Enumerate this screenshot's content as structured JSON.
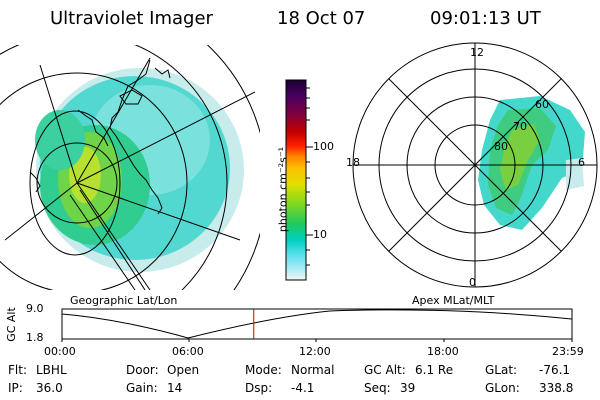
{
  "header": {
    "title": "Ultraviolet Imager",
    "date": "18 Oct 07",
    "time": "09:01:13 UT"
  },
  "geo_panel": {
    "caption": "Geographic Lat/Lon"
  },
  "polar_panel": {
    "caption": "Apex MLat/MLT",
    "mlt_labels": {
      "top": "12",
      "bottom": "0",
      "left": "18",
      "right": "6"
    },
    "lat_labels": [
      "60",
      "70",
      "80"
    ]
  },
  "colorbar": {
    "label": "photon cm⁻²s⁻¹",
    "ticks": [
      "100",
      "10"
    ],
    "colors": [
      "#1a0030",
      "#4a0060",
      "#800040",
      "#b00000",
      "#e00000",
      "#ff4000",
      "#ff8000",
      "#ffc000",
      "#e6e600",
      "#a0e000",
      "#40d040",
      "#00c8a0",
      "#00d8e0",
      "#a0e8f0",
      "#e8f4f4"
    ]
  },
  "altitude_plot": {
    "ylabel": "GC Alt",
    "yticks": [
      "9.0",
      "1.8"
    ],
    "xticks": [
      "00:00",
      "06:00",
      "12:00",
      "18:00",
      "23:59"
    ],
    "current_time_fraction": 0.376
  },
  "info": {
    "flt_label": "Flt:",
    "flt_value": "LBHL",
    "ip_label": "IP:",
    "ip_value": "36.0",
    "door_label": "Door:",
    "door_value": "Open",
    "gain_label": "Gain:",
    "gain_value": "14",
    "mode_label": "Mode:",
    "mode_value": "Normal",
    "dsp_label": "Dsp:",
    "dsp_value": "-4.1",
    "gcalt_label": "GC Alt:",
    "gcalt_value": "6.1 Re",
    "seq_label": "Seq:",
    "seq_value": "39",
    "glat_label": "GLat:",
    "glat_value": "-76.1",
    "glon_label": "GLon:",
    "glon_value": "338.8"
  }
}
